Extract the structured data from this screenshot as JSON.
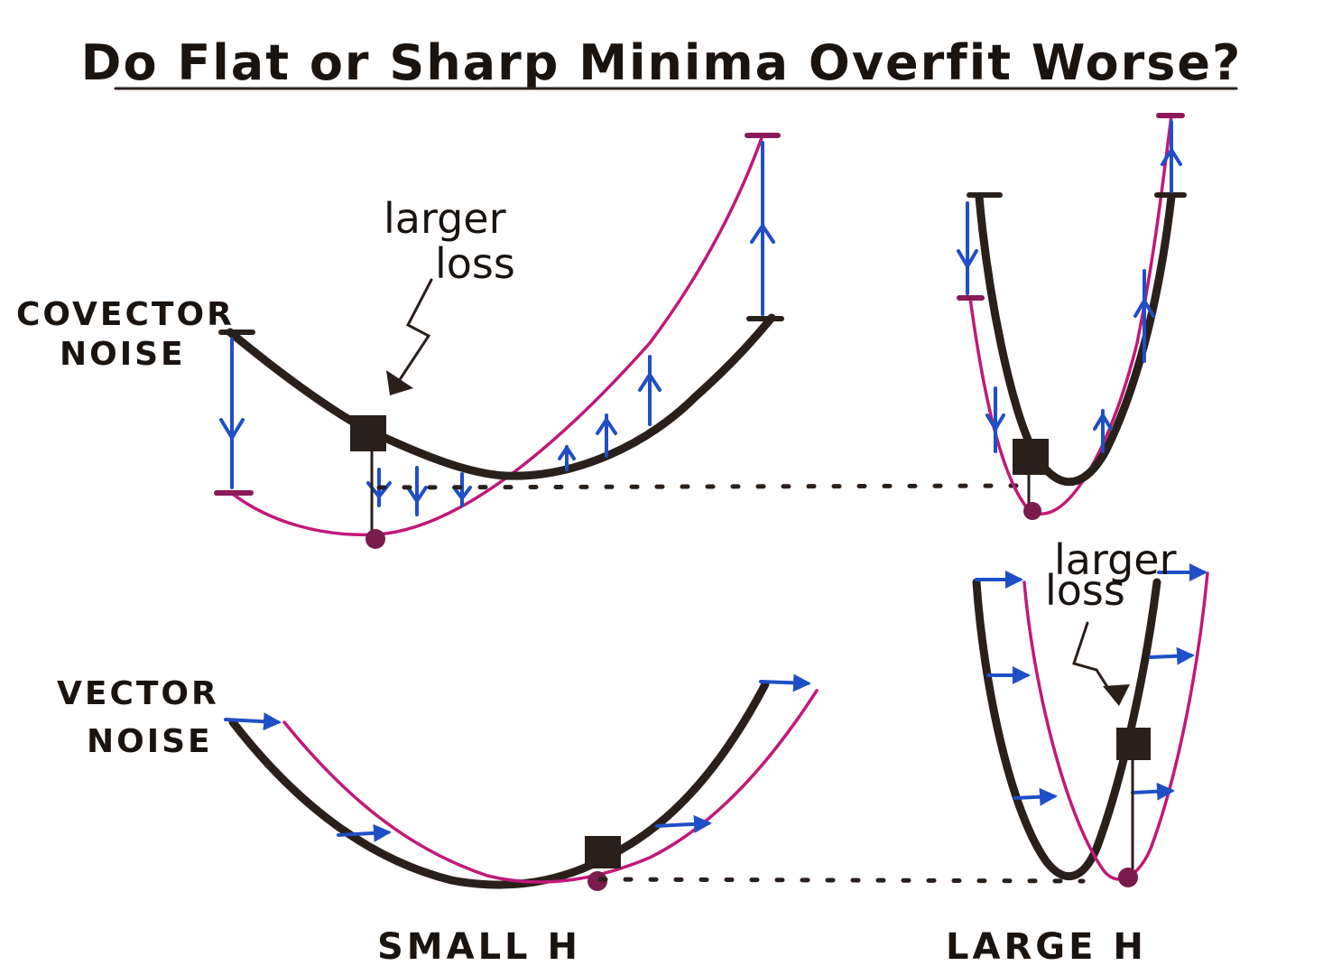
{
  "title": "Do Flat or Sharp Minima Overfit Worse?",
  "labels": {
    "larger_loss": [
      "larger",
      "loss"
    ],
    "covector_noise": [
      "COVECTOR",
      "NOISE"
    ],
    "vector_noise": [
      "VECTOR",
      "NOISE"
    ],
    "small_h": "SMALL H",
    "large_h": "LARGE H"
  },
  "colors": {
    "ink": "#2a201b",
    "true_curve": "#c2187a",
    "noise_arrows": "#1f4fc7"
  }
}
